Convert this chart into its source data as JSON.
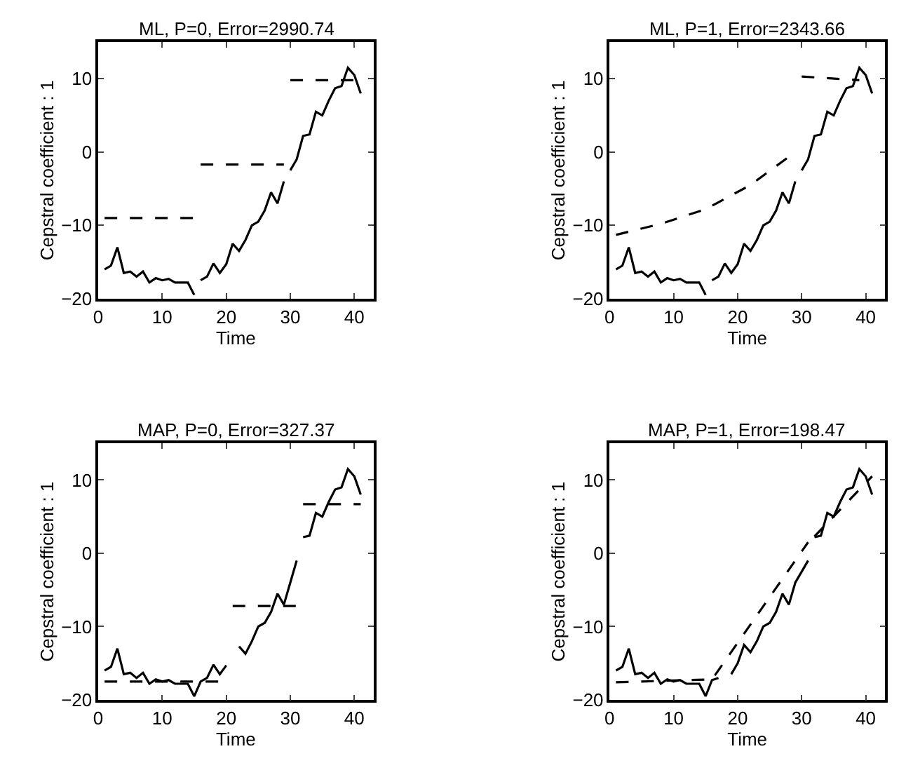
{
  "chart_data": [
    {
      "type": "line",
      "title": "ML, P=0, Error=2990.74",
      "xlabel": "Time",
      "ylabel": "Cepstral coefficient : 1",
      "xlim": [
        0,
        43
      ],
      "ylim": [
        -20,
        15
      ],
      "xticks": [
        0,
        10,
        20,
        30,
        40
      ],
      "yticks": [
        -20,
        -10,
        0,
        10
      ],
      "series": [
        {
          "color": "#000000",
          "line_style": "solid",
          "x": [
            1,
            2,
            3,
            4,
            5,
            6,
            7,
            8,
            9,
            10,
            11,
            12,
            13,
            14,
            15,
            15.5,
            16,
            17,
            18,
            19,
            20,
            21,
            22,
            23,
            24,
            25,
            26,
            27,
            28,
            29,
            29.5,
            30,
            31,
            32,
            33,
            34,
            35,
            36,
            37,
            38,
            39,
            40,
            41
          ],
          "values": [
            -16,
            -15.5,
            -13,
            -16.5,
            -16.3,
            -17,
            -16.3,
            -17.8,
            -17.2,
            -17.5,
            -17.3,
            -17.8,
            -17.8,
            -17.8,
            -19.5,
            null,
            -17.5,
            -17,
            -15.2,
            -16.5,
            -15.3,
            -12.5,
            -13.5,
            -12,
            -10,
            -9.5,
            -8,
            -5.5,
            -7,
            -4,
            null,
            -2.5,
            -1,
            2.2,
            2.4,
            5.5,
            5,
            7,
            8.7,
            9,
            11.5,
            10.5,
            8
          ]
        },
        {
          "color": "#000000",
          "line_style": "dashed",
          "x": [
            1,
            15,
            15.5,
            16,
            29,
            29.5,
            30,
            41
          ],
          "values": [
            -9,
            -9,
            null,
            -1.7,
            -1.7,
            null,
            9.8,
            9.8
          ]
        }
      ]
    },
    {
      "type": "line",
      "title": "ML, P=1, Error=2343.66",
      "xlabel": "Time",
      "ylabel": "Cepstral coefficient : 1",
      "xlim": [
        0,
        43
      ],
      "ylim": [
        -20,
        15
      ],
      "xticks": [
        0,
        10,
        20,
        30,
        40
      ],
      "yticks": [
        -20,
        -10,
        0,
        10
      ],
      "series": [
        {
          "color": "#000000",
          "line_style": "solid",
          "x": [
            1,
            2,
            3,
            4,
            5,
            6,
            7,
            8,
            9,
            10,
            11,
            12,
            13,
            14,
            15,
            15.5,
            16,
            17,
            18,
            19,
            20,
            21,
            22,
            23,
            24,
            25,
            26,
            27,
            28,
            29,
            29.5,
            30,
            31,
            32,
            33,
            34,
            35,
            36,
            37,
            38,
            39,
            40,
            41
          ],
          "values": [
            -16,
            -15.5,
            -13,
            -16.5,
            -16.3,
            -17,
            -16.3,
            -17.8,
            -17.2,
            -17.5,
            -17.3,
            -17.8,
            -17.8,
            -17.8,
            -19.5,
            null,
            -17.5,
            -17,
            -15.2,
            -16.5,
            -15.3,
            -12.5,
            -13.5,
            -12,
            -10,
            -9.5,
            -8,
            -5.5,
            -7,
            -4,
            null,
            -2.5,
            -1,
            2.2,
            2.4,
            5.5,
            5,
            7,
            8.7,
            9,
            11.5,
            10.5,
            8
          ]
        },
        {
          "color": "#000000",
          "line_style": "dashed",
          "x": [
            1,
            8,
            15,
            22,
            29,
            29.5,
            30,
            39
          ],
          "values": [
            -11.3,
            -9.8,
            -7.8,
            -4.5,
            0,
            null,
            10.3,
            9.8
          ]
        }
      ]
    },
    {
      "type": "line",
      "title": "MAP, P=0, Error=327.37",
      "xlabel": "Time",
      "ylabel": "Cepstral coefficient : 1",
      "xlim": [
        0,
        43
      ],
      "ylim": [
        -20,
        15
      ],
      "xticks": [
        0,
        10,
        20,
        30,
        40
      ],
      "yticks": [
        -20,
        -10,
        0,
        10
      ],
      "series": [
        {
          "color": "#000000",
          "line_style": "solid",
          "x": [
            1,
            2,
            3,
            4,
            5,
            6,
            7,
            8,
            9,
            10,
            11,
            12,
            13,
            14,
            15,
            16,
            17,
            18,
            19,
            20,
            21,
            22,
            23,
            24,
            25,
            26,
            27,
            28,
            29,
            30,
            31,
            31.5,
            32,
            33,
            34,
            35,
            36,
            37,
            38,
            39,
            40,
            41
          ],
          "values": [
            -16,
            -15.5,
            -13,
            -16.5,
            -16.3,
            -17,
            -16.3,
            -17.8,
            -17.2,
            -17.5,
            -17.3,
            -17.8,
            -17.8,
            -17.8,
            -19.5,
            -17.5,
            -17,
            -15.2,
            -16.5,
            -15.3,
            null,
            -12.7,
            -13.7,
            -12,
            -10,
            -9.5,
            -8,
            -5.5,
            -7,
            -4,
            -1,
            null,
            2.2,
            2.4,
            5.5,
            5,
            7,
            8.7,
            9,
            11.5,
            10.5,
            8
          ]
        },
        {
          "color": "#000000",
          "line_style": "dashed",
          "x": [
            1,
            20,
            20.5,
            21,
            31,
            31.5,
            32,
            41
          ],
          "values": [
            -17.5,
            -17.5,
            null,
            -7.2,
            -7.2,
            null,
            6.7,
            6.7
          ]
        }
      ]
    },
    {
      "type": "line",
      "title": "MAP, P=1, Error=198.47",
      "xlabel": "Time",
      "ylabel": "Cepstral coefficient : 1",
      "xlim": [
        0,
        43
      ],
      "ylim": [
        -20,
        15
      ],
      "xticks": [
        0,
        10,
        20,
        30,
        40
      ],
      "yticks": [
        -20,
        -10,
        0,
        10
      ],
      "series": [
        {
          "color": "#000000",
          "line_style": "solid",
          "x": [
            1,
            2,
            3,
            4,
            5,
            6,
            7,
            8,
            9,
            10,
            11,
            12,
            13,
            14,
            15,
            16,
            17,
            17.5,
            19,
            20,
            21,
            22,
            23,
            24,
            25,
            26,
            27,
            28,
            29,
            30,
            31,
            31.5,
            32,
            33,
            34,
            35,
            36,
            37,
            38,
            39,
            40,
            41
          ],
          "values": [
            -16,
            -15.5,
            -13,
            -16.5,
            -16.3,
            -17,
            -16.3,
            -17.8,
            -17.2,
            -17.5,
            -17.3,
            -17.8,
            -17.8,
            -17.8,
            -19.5,
            -17.3,
            -17,
            null,
            -16.5,
            -15,
            -12.5,
            -13.5,
            -12,
            -10,
            -9.5,
            -8,
            -5.5,
            -7,
            -4,
            -2.5,
            -1,
            null,
            2.2,
            2.4,
            5.5,
            5,
            7,
            8.7,
            9,
            11.5,
            10.5,
            8
          ]
        },
        {
          "color": "#000000",
          "line_style": "dashed",
          "x": [
            1,
            16,
            31,
            31.5,
            32,
            41
          ],
          "values": [
            -17.6,
            -17.2,
            1.5,
            null,
            2.3,
            10.5
          ]
        }
      ]
    }
  ]
}
